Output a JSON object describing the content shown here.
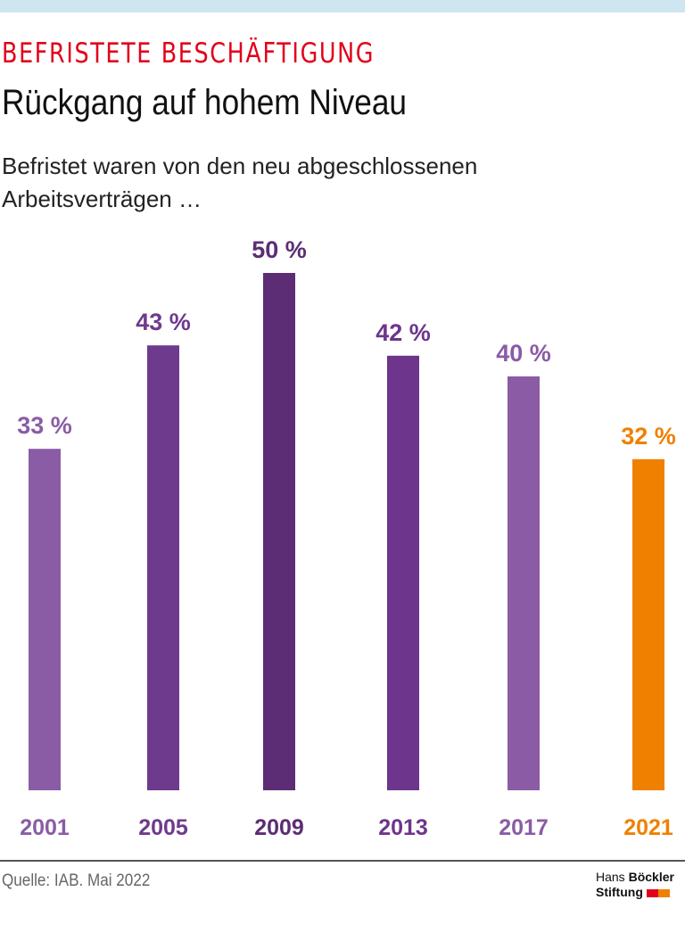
{
  "header": {
    "kicker": "BEFRISTETE BESCHÄFTIGUNG",
    "title": "Rückgang auf hohem Niveau",
    "subtitle": "Befristet waren von den neu abgeschlossenen Arbeitsverträgen …"
  },
  "chart_data": {
    "type": "bar",
    "categories": [
      "2001",
      "2005",
      "2009",
      "2013",
      "2017",
      "2021"
    ],
    "values": [
      33,
      43,
      50,
      42,
      40,
      32
    ],
    "value_labels": [
      "33 %",
      "43 %",
      "50 %",
      "42 %",
      "40 %",
      "32 %"
    ],
    "colors": [
      "#8a5ca5",
      "#6e3a8e",
      "#5c2d74",
      "#6d358c",
      "#8b5ba6",
      "#f08000"
    ],
    "ylim": [
      0,
      50
    ],
    "grid": false
  },
  "footer": {
    "source": "Quelle: IAB. Mai 2022",
    "logo_line1_a": "Hans",
    "logo_line1_b": "Böckler",
    "logo_line2": "Stiftung",
    "logo_colors": [
      "#e2001a",
      "#f08000"
    ]
  }
}
